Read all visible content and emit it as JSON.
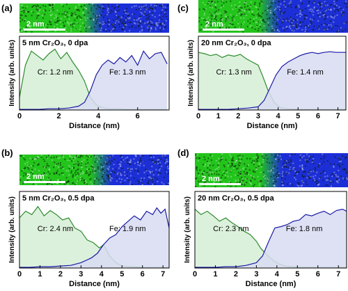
{
  "colors": {
    "cr_line": "#2e8b2e",
    "cr_fill": "#d6efd6",
    "fe_line": "#1a1aa6",
    "fe_fill": "#d8dcf2",
    "map_green": "#23c41b",
    "map_blue": "#1c2fd6"
  },
  "chart_data": [
    {
      "type": "area",
      "panel_label": "(a)",
      "title": "5 nm Cr₂O₃, 0 dpa",
      "scale_bar": "2 nm",
      "xlabel": "Distance (nm)",
      "ylabel": "Intensity (arb. units)",
      "xlim": [
        0,
        7.6
      ],
      "ylim": [
        0,
        1
      ],
      "xticks": [
        0,
        2,
        4,
        6
      ],
      "cr_end": 4.0,
      "fe_start": 3.6,
      "annotations": [
        {
          "text": "Cr: 1.2 nm",
          "series": "Cr"
        },
        {
          "text": "Fe: 1.3 nm",
          "series": "Fe"
        }
      ],
      "series": [
        {
          "name": "Cr",
          "x": [
            0,
            0.3,
            0.6,
            0.9,
            1.2,
            1.5,
            1.8,
            2.1,
            2.4,
            2.7,
            3.0,
            3.3,
            3.6,
            3.9,
            4.2,
            4.5,
            5.0,
            5.5,
            6.0,
            6.5,
            7.0,
            7.5
          ],
          "values": [
            0.2,
            0.7,
            0.92,
            0.85,
            0.78,
            0.88,
            0.95,
            0.8,
            0.9,
            0.75,
            0.62,
            0.45,
            0.2,
            0.08,
            0.04,
            0.02,
            0.02,
            0.01,
            0.01,
            0.01,
            0.01,
            0.01
          ]
        },
        {
          "name": "Fe",
          "x": [
            0,
            0.5,
            1.0,
            1.5,
            2.0,
            2.5,
            3.0,
            3.3,
            3.6,
            3.9,
            4.2,
            4.5,
            4.8,
            5.1,
            5.4,
            5.7,
            6.0,
            6.3,
            6.6,
            6.9,
            7.2,
            7.5
          ],
          "values": [
            0.01,
            0.01,
            0.01,
            0.02,
            0.02,
            0.03,
            0.06,
            0.12,
            0.3,
            0.55,
            0.7,
            0.78,
            0.72,
            0.82,
            0.75,
            0.85,
            0.7,
            0.92,
            0.8,
            0.88,
            0.9,
            0.72
          ]
        }
      ]
    },
    {
      "type": "area",
      "panel_label": "(c)",
      "title": "20 nm Cr₂O₃, 0 dpa",
      "scale_bar": "2 nm",
      "xlabel": "Distance (nm)",
      "ylabel": "Intensity (arb. units)",
      "xlim": [
        0,
        7.4
      ],
      "ylim": [
        0,
        1
      ],
      "xticks": [
        0,
        1,
        2,
        3,
        4,
        5,
        6,
        7
      ],
      "cr_end": 4.0,
      "fe_start": 3.2,
      "annotations": [
        {
          "text": "Cr: 1.3 nm",
          "series": "Cr"
        },
        {
          "text": "Fe: 1.4 nm",
          "series": "Fe"
        }
      ],
      "series": [
        {
          "name": "Cr",
          "x": [
            0,
            0.3,
            0.6,
            0.9,
            1.2,
            1.5,
            1.8,
            2.1,
            2.4,
            2.7,
            3.0,
            3.2,
            3.5,
            3.8,
            4.1,
            4.5,
            5.0,
            5.5,
            6.0,
            6.5,
            7.0,
            7.4
          ],
          "values": [
            0.9,
            0.88,
            0.85,
            0.87,
            0.82,
            0.86,
            0.84,
            0.87,
            0.8,
            0.75,
            0.7,
            0.55,
            0.3,
            0.12,
            0.04,
            0.02,
            0.01,
            0.01,
            0.01,
            0.01,
            0.01,
            0.01
          ]
        },
        {
          "name": "Fe",
          "x": [
            0,
            0.5,
            1.0,
            1.5,
            2.0,
            2.5,
            3.0,
            3.3,
            3.6,
            3.9,
            4.2,
            4.5,
            4.8,
            5.1,
            5.4,
            5.7,
            6.0,
            6.3,
            6.6,
            6.9,
            7.2,
            7.4
          ],
          "values": [
            0.01,
            0.01,
            0.01,
            0.01,
            0.02,
            0.03,
            0.05,
            0.15,
            0.35,
            0.55,
            0.68,
            0.75,
            0.8,
            0.85,
            0.88,
            0.9,
            0.88,
            0.9,
            0.91,
            0.9,
            0.9,
            0.9
          ]
        }
      ]
    },
    {
      "type": "area",
      "panel_label": "(b)",
      "title": "5 nm Cr₂O₃, 0.5 dpa",
      "scale_bar": "2 nm",
      "xlabel": "Distance (nm)",
      "ylabel": "Intensity (arb. units)",
      "xlim": [
        0,
        7.3
      ],
      "ylim": [
        0,
        1
      ],
      "xticks": [
        0,
        1,
        2,
        3,
        4,
        5,
        6,
        7
      ],
      "cr_end": 4.6,
      "fe_start": 3.5,
      "annotations": [
        {
          "text": "Cr: 2.4 nm",
          "series": "Cr"
        },
        {
          "text": "Fe: 1.9 nm",
          "series": "Fe"
        }
      ],
      "series": [
        {
          "name": "Cr",
          "x": [
            0,
            0.3,
            0.6,
            0.9,
            1.2,
            1.5,
            1.8,
            2.1,
            2.4,
            2.7,
            3.0,
            3.3,
            3.6,
            3.9,
            4.1,
            4.4,
            4.7,
            5.0,
            5.5,
            6.0,
            6.5,
            7.3
          ],
          "values": [
            0.75,
            0.85,
            0.8,
            0.92,
            0.78,
            0.86,
            0.8,
            0.72,
            0.75,
            0.6,
            0.55,
            0.42,
            0.38,
            0.3,
            0.35,
            0.18,
            0.08,
            0.03,
            0.02,
            0.01,
            0.01,
            0.01
          ]
        },
        {
          "name": "Fe",
          "x": [
            0,
            0.5,
            1.0,
            1.5,
            2.0,
            2.5,
            3.0,
            3.5,
            3.8,
            4.1,
            4.4,
            4.7,
            5.0,
            5.3,
            5.6,
            5.9,
            6.2,
            6.5,
            6.7,
            6.9,
            7.1,
            7.3
          ],
          "values": [
            0.01,
            0.01,
            0.02,
            0.02,
            0.03,
            0.04,
            0.08,
            0.15,
            0.22,
            0.35,
            0.45,
            0.5,
            0.62,
            0.7,
            0.78,
            0.72,
            0.85,
            0.8,
            0.9,
            0.82,
            0.88,
            0.6
          ]
        }
      ]
    },
    {
      "type": "area",
      "panel_label": "(d)",
      "title": "20 nm Cr₂O₃, 0.5 dpa",
      "scale_bar": "2 nm",
      "xlabel": "Distance (nm)",
      "ylabel": "Intensity (arb. units)",
      "xlim": [
        0,
        7.4
      ],
      "ylim": [
        0,
        1
      ],
      "xticks": [
        0,
        1,
        2,
        3,
        4,
        5,
        6,
        7
      ],
      "cr_end": 4.2,
      "fe_start": 3.3,
      "annotations": [
        {
          "text": "Cr: 2.3 nm",
          "series": "Cr"
        },
        {
          "text": "Fe: 1.8 nm",
          "series": "Fe"
        }
      ],
      "series": [
        {
          "name": "Cr",
          "x": [
            0,
            0.3,
            0.6,
            0.9,
            1.2,
            1.5,
            1.8,
            2.1,
            2.4,
            2.7,
            3.0,
            3.2,
            3.5,
            3.8,
            4.1,
            4.4,
            4.8,
            5.2,
            5.8,
            6.4,
            7.0,
            7.4
          ],
          "values": [
            0.88,
            0.8,
            0.85,
            0.78,
            0.7,
            0.75,
            0.68,
            0.62,
            0.55,
            0.5,
            0.4,
            0.3,
            0.2,
            0.12,
            0.06,
            0.03,
            0.02,
            0.01,
            0.01,
            0.01,
            0.01,
            0.01
          ]
        },
        {
          "name": "Fe",
          "x": [
            0,
            0.5,
            1.0,
            1.5,
            2.0,
            2.5,
            3.0,
            3.3,
            3.6,
            3.9,
            4.2,
            4.5,
            4.8,
            5.1,
            5.4,
            5.7,
            6.0,
            6.3,
            6.6,
            6.9,
            7.2,
            7.4
          ],
          "values": [
            0.01,
            0.01,
            0.01,
            0.02,
            0.02,
            0.04,
            0.08,
            0.18,
            0.4,
            0.6,
            0.62,
            0.65,
            0.7,
            0.72,
            0.8,
            0.78,
            0.82,
            0.85,
            0.8,
            0.86,
            0.88,
            0.85
          ]
        }
      ]
    }
  ]
}
